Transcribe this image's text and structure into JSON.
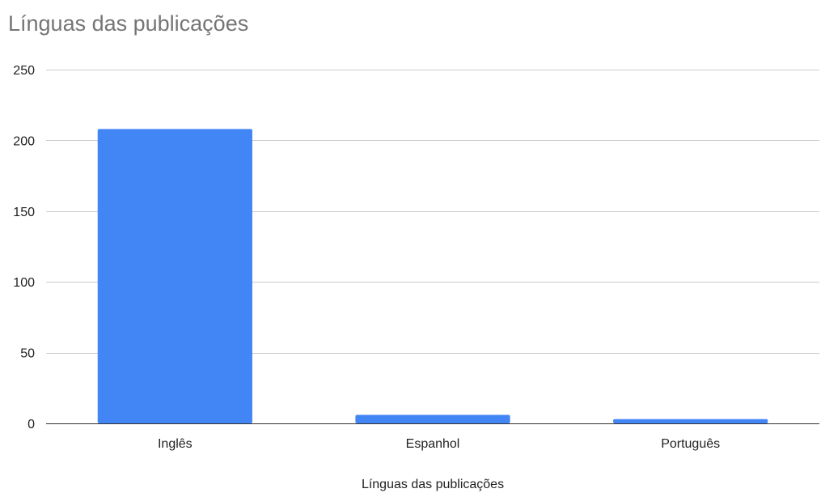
{
  "chart_data": {
    "type": "bar",
    "title": "Línguas das publicações",
    "xlabel": "Línguas das publicações",
    "ylabel": "",
    "categories": [
      "Inglês",
      "Espanhol",
      "Português"
    ],
    "values": [
      208,
      6,
      3
    ],
    "ylim": [
      0,
      250
    ],
    "yticks": [
      0,
      50,
      100,
      150,
      200,
      250
    ],
    "grid": true,
    "legend": "none",
    "bar_color": "#4285f4",
    "grid_color": "#cccccc",
    "axis_color": "#333333"
  }
}
